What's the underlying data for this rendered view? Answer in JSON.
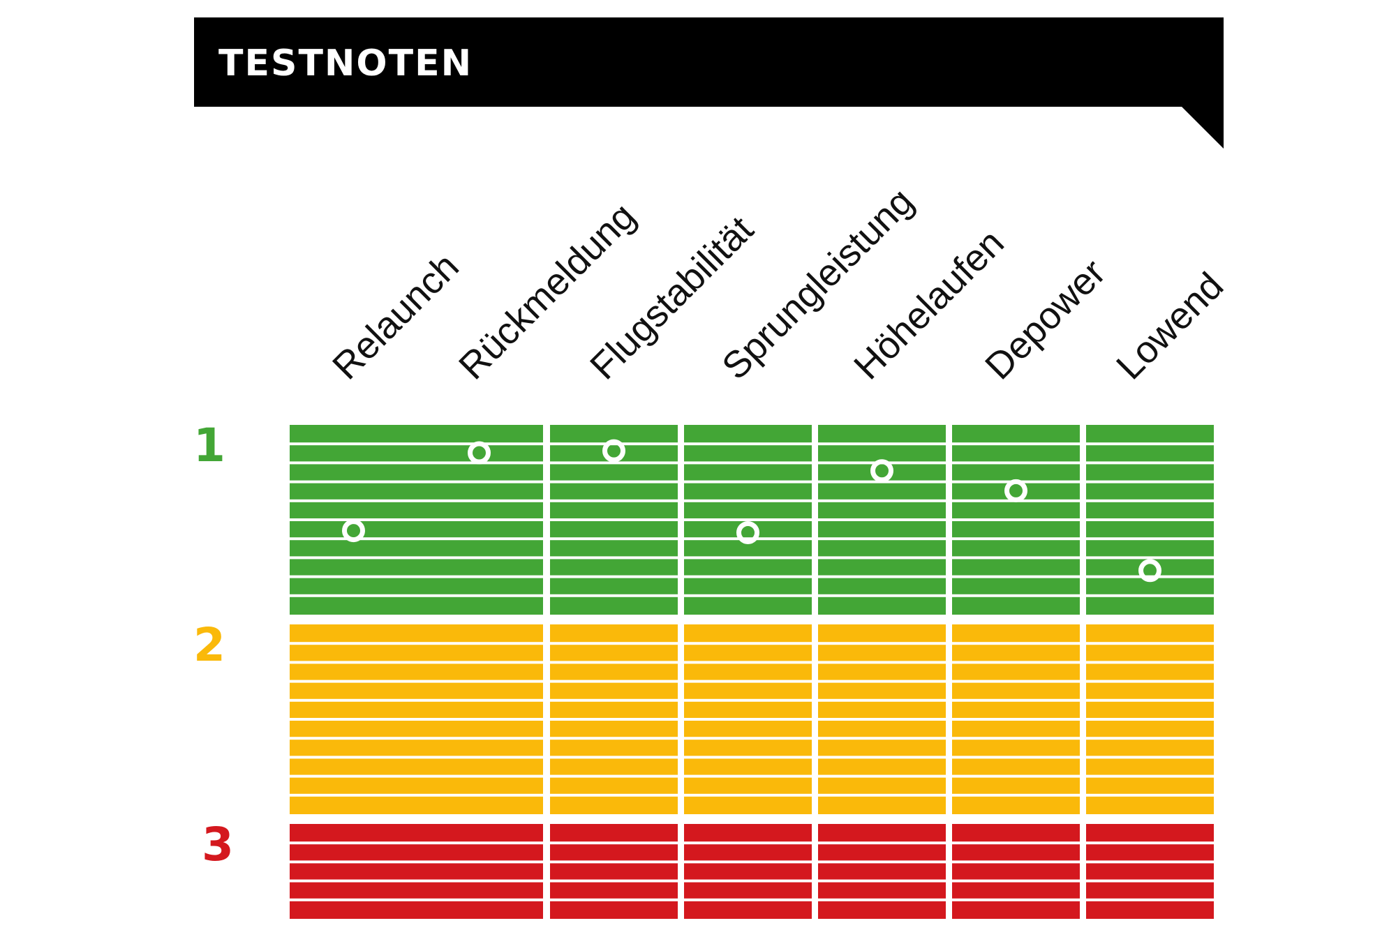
{
  "chart_data": {
    "type": "dot-grid",
    "title": "TESTNOTEN",
    "categories": [
      "Relaunch",
      "Rückmeldung",
      "Flugstabilität",
      "Sprungleistung",
      "Höhelaufen",
      "Depower",
      "Lowend"
    ],
    "grades": [
      {
        "label": "1",
        "color": "#43A636",
        "stripes": 10
      },
      {
        "label": "2",
        "color": "#FAB90A",
        "stripes": 10
      },
      {
        "label": "3",
        "color": "#D4181E",
        "stripes": 5
      }
    ],
    "values": [
      1.53,
      1.14,
      1.13,
      1.54,
      1.23,
      1.33,
      1.73
    ],
    "ylim": [
      1,
      3.5
    ],
    "y_direction": "down"
  },
  "colors": {
    "title_bar": "#000000",
    "title_text": "#ffffff",
    "marker": "#ffffff"
  }
}
